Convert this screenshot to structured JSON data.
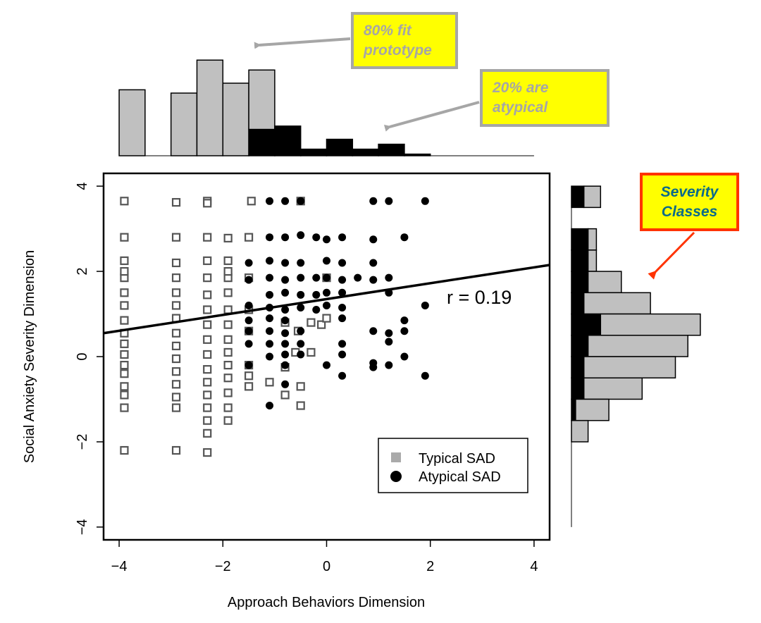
{
  "chart_data": {
    "type": "scatter",
    "title": "",
    "xlabel": "Approach Behaviors Dimension",
    "ylabel": "Social Anxiety Severity Dimension",
    "xlim": [
      -4.3,
      4.3
    ],
    "ylim": [
      -4.3,
      4.3
    ],
    "xticks": [
      -4,
      -2,
      0,
      2,
      4
    ],
    "yticks": [
      -4,
      -2,
      0,
      2,
      4
    ],
    "tick_labels_x": [
      "−4",
      "−2",
      "0",
      "2",
      "4"
    ],
    "tick_labels_y": [
      "−4",
      "−2",
      "0",
      "2",
      "4"
    ],
    "grid": false,
    "legend": {
      "placement": "bottom-right",
      "entries": [
        {
          "label": "Typical SAD",
          "marker": "square",
          "color": "#aaaaaa"
        },
        {
          "label": "Atypical SAD",
          "marker": "circle",
          "color": "#000000"
        }
      ]
    },
    "annotation": "r = 0.19",
    "regression_line": {
      "x": [
        -4.3,
        4.3
      ],
      "y": [
        0.55,
        2.15
      ]
    },
    "series": [
      {
        "name": "Typical SAD",
        "marker": "square",
        "color": "#aaaaaa",
        "points": [
          [
            -3.9,
            3.65
          ],
          [
            -2.9,
            3.62
          ],
          [
            -2.3,
            3.65
          ],
          [
            -1.45,
            3.65
          ],
          [
            -0.5,
            3.65
          ],
          [
            -3.9,
            2.8
          ],
          [
            -2.9,
            2.8
          ],
          [
            -2.3,
            2.8
          ],
          [
            -1.9,
            2.78
          ],
          [
            -1.5,
            2.8
          ],
          [
            -3.9,
            2.25
          ],
          [
            -3.9,
            1.85
          ],
          [
            -3.9,
            1.5
          ],
          [
            -3.9,
            1.2
          ],
          [
            -3.9,
            0.85
          ],
          [
            -3.9,
            0.55
          ],
          [
            -3.9,
            0.3
          ],
          [
            -3.9,
            0.05
          ],
          [
            -3.9,
            -0.2
          ],
          [
            -3.9,
            -0.4
          ],
          [
            -3.9,
            -0.7
          ],
          [
            -3.9,
            -0.9
          ],
          [
            -3.9,
            -1.2
          ],
          [
            -3.9,
            -2.2
          ],
          [
            -2.9,
            2.2
          ],
          [
            -2.9,
            1.85
          ],
          [
            -2.9,
            1.5
          ],
          [
            -2.9,
            1.2
          ],
          [
            -2.9,
            0.9
          ],
          [
            -2.9,
            0.55
          ],
          [
            -2.9,
            0.25
          ],
          [
            -2.9,
            -0.05
          ],
          [
            -2.9,
            -0.35
          ],
          [
            -2.9,
            -0.65
          ],
          [
            -2.9,
            -0.95
          ],
          [
            -2.9,
            -1.2
          ],
          [
            -2.9,
            -2.2
          ],
          [
            -2.3,
            2.25
          ],
          [
            -2.3,
            1.85
          ],
          [
            -2.3,
            1.45
          ],
          [
            -2.3,
            1.1
          ],
          [
            -2.3,
            0.75
          ],
          [
            -2.3,
            0.4
          ],
          [
            -2.3,
            0.05
          ],
          [
            -2.3,
            -0.3
          ],
          [
            -2.3,
            -0.6
          ],
          [
            -2.3,
            -0.9
          ],
          [
            -2.3,
            -1.2
          ],
          [
            -2.3,
            -1.5
          ],
          [
            -2.3,
            -1.8
          ],
          [
            -2.3,
            -2.25
          ],
          [
            -1.9,
            2.25
          ],
          [
            -1.9,
            1.85
          ],
          [
            -1.9,
            1.5
          ],
          [
            -1.9,
            1.1
          ],
          [
            -1.9,
            0.75
          ],
          [
            -1.9,
            0.4
          ],
          [
            -1.9,
            0.1
          ],
          [
            -1.9,
            -0.2
          ],
          [
            -1.9,
            -0.5
          ],
          [
            -1.9,
            -0.85
          ],
          [
            -1.9,
            -1.2
          ],
          [
            -1.9,
            -1.5
          ],
          [
            -1.5,
            1.85
          ],
          [
            -1.5,
            1.1
          ],
          [
            -1.5,
            0.6
          ],
          [
            -1.5,
            -0.2
          ],
          [
            -1.5,
            -0.7
          ],
          [
            -1.1,
            -0.6
          ],
          [
            -0.8,
            0.8
          ],
          [
            -0.8,
            -0.9
          ],
          [
            -0.6,
            0.1
          ],
          [
            -0.5,
            -0.7
          ],
          [
            -0.5,
            -1.15
          ],
          [
            -0.3,
            0.1
          ],
          [
            -0.3,
            0.8
          ],
          [
            -0.1,
            0.75
          ],
          [
            0.0,
            1.85
          ],
          [
            0.0,
            0.9
          ],
          [
            -2.3,
            3.6
          ],
          [
            -3.9,
            2.0
          ],
          [
            -1.9,
            2.0
          ],
          [
            -1.5,
            -0.45
          ],
          [
            -0.8,
            -0.25
          ],
          [
            -0.55,
            0.6
          ]
        ]
      },
      {
        "name": "Atypical SAD",
        "marker": "circle",
        "color": "#000000",
        "points": [
          [
            -1.1,
            3.65
          ],
          [
            -0.8,
            3.65
          ],
          [
            -0.5,
            3.65
          ],
          [
            0.9,
            3.65
          ],
          [
            1.2,
            3.65
          ],
          [
            1.9,
            3.65
          ],
          [
            -1.1,
            2.8
          ],
          [
            -0.8,
            2.8
          ],
          [
            -0.5,
            2.85
          ],
          [
            -0.2,
            2.8
          ],
          [
            0.0,
            2.75
          ],
          [
            0.3,
            2.8
          ],
          [
            0.9,
            2.75
          ],
          [
            1.5,
            2.8
          ],
          [
            -1.5,
            2.2
          ],
          [
            -1.1,
            2.25
          ],
          [
            -0.8,
            2.2
          ],
          [
            -0.5,
            2.2
          ],
          [
            0.0,
            2.25
          ],
          [
            0.3,
            2.2
          ],
          [
            0.9,
            2.2
          ],
          [
            -1.5,
            1.8
          ],
          [
            -1.1,
            1.85
          ],
          [
            -0.8,
            1.8
          ],
          [
            -0.5,
            1.85
          ],
          [
            -0.2,
            1.85
          ],
          [
            0.0,
            1.85
          ],
          [
            0.3,
            1.8
          ],
          [
            0.6,
            1.85
          ],
          [
            0.9,
            1.8
          ],
          [
            1.2,
            1.85
          ],
          [
            -1.1,
            1.45
          ],
          [
            -0.8,
            1.5
          ],
          [
            -0.5,
            1.45
          ],
          [
            -0.2,
            1.45
          ],
          [
            0.0,
            1.5
          ],
          [
            0.3,
            1.5
          ],
          [
            1.2,
            1.5
          ],
          [
            -1.5,
            1.2
          ],
          [
            -1.1,
            1.15
          ],
          [
            -0.8,
            1.1
          ],
          [
            -0.5,
            1.15
          ],
          [
            -0.2,
            1.1
          ],
          [
            0.0,
            1.2
          ],
          [
            0.3,
            1.15
          ],
          [
            1.9,
            1.2
          ],
          [
            -1.5,
            0.85
          ],
          [
            -1.1,
            0.9
          ],
          [
            -0.8,
            0.85
          ],
          [
            0.3,
            0.9
          ],
          [
            1.5,
            0.85
          ],
          [
            -1.5,
            0.6
          ],
          [
            -1.1,
            0.6
          ],
          [
            -0.8,
            0.55
          ],
          [
            -0.5,
            0.6
          ],
          [
            0.9,
            0.6
          ],
          [
            1.2,
            0.55
          ],
          [
            1.5,
            0.6
          ],
          [
            -1.5,
            0.3
          ],
          [
            -1.1,
            0.3
          ],
          [
            -0.8,
            0.3
          ],
          [
            -0.5,
            0.3
          ],
          [
            0.3,
            0.3
          ],
          [
            1.2,
            0.35
          ],
          [
            -1.1,
            0.0
          ],
          [
            -0.8,
            0.05
          ],
          [
            -0.5,
            0.05
          ],
          [
            0.3,
            0.05
          ],
          [
            1.5,
            0.0
          ],
          [
            -1.5,
            -0.2
          ],
          [
            -0.8,
            -0.2
          ],
          [
            0.0,
            -0.2
          ],
          [
            0.9,
            -0.15
          ],
          [
            0.9,
            -0.25
          ],
          [
            1.2,
            -0.2
          ],
          [
            0.3,
            -0.45
          ],
          [
            1.9,
            -0.45
          ],
          [
            -0.8,
            -0.65
          ],
          [
            -1.1,
            -1.15
          ]
        ]
      }
    ],
    "top_histogram": {
      "bin_edges": [
        -4.0,
        -3.5,
        -3.0,
        -2.5,
        -2.0,
        -1.5,
        -1.0,
        -0.5,
        0.0,
        0.5,
        1.0,
        1.5,
        2.0,
        2.5,
        3.0,
        3.5,
        4.0
      ],
      "typical": [
        40,
        0,
        38,
        58,
        44,
        36,
        0,
        0,
        0,
        0,
        0,
        0,
        0,
        0,
        0,
        0
      ],
      "atypical": [
        0,
        0,
        0,
        0,
        0,
        16,
        18,
        4,
        10,
        4,
        7,
        1,
        0,
        0,
        0,
        0
      ]
    },
    "right_histogram": {
      "bin_edges": [
        4.0,
        3.5,
        3.0,
        2.5,
        2.0,
        1.5,
        1.0,
        0.5,
        0.0,
        -0.5,
        -1.0,
        -1.5,
        -2.0,
        -2.5,
        -3.0,
        -3.5,
        -4.0
      ],
      "typical": [
        4,
        0,
        2,
        2,
        8,
        16,
        24,
        24,
        22,
        14,
        8,
        4,
        0,
        0,
        0,
        0
      ],
      "atypical": [
        3,
        0,
        4,
        4,
        4,
        3,
        7,
        4,
        3,
        3,
        1,
        0,
        0,
        0,
        0,
        0
      ]
    }
  },
  "callouts": {
    "prototype": [
      "80% fit",
      "prototype"
    ],
    "atypical": [
      "20% are",
      "atypical"
    ],
    "severity": [
      "Severity",
      "Classes"
    ]
  },
  "colors": {
    "typical": "#c0c0c0",
    "typical_marker": "#aaaaaa",
    "atypical": "#000000",
    "callout_fill": "#ffff00",
    "callout_border_grey": "#a6a6a6",
    "callout_border_red": "#ff3300",
    "arrow_grey": "#a6a6a6",
    "arrow_red": "#ff3300",
    "severity_text": "#0a6a8a"
  }
}
